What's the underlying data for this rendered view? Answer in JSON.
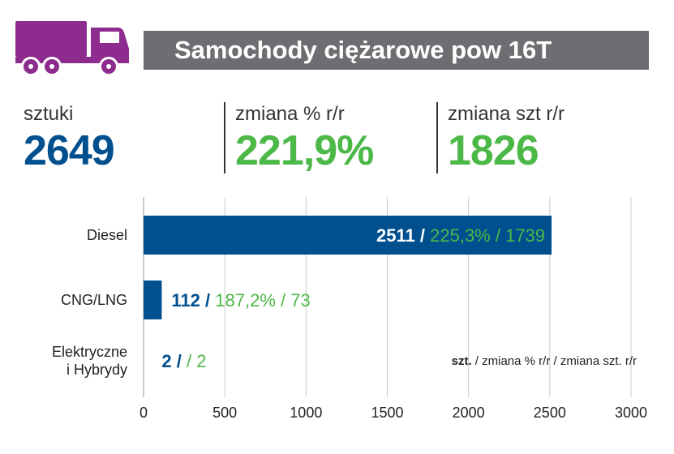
{
  "header": {
    "title": "Samochody ciężarowe pow 16T",
    "icon": "truck-icon",
    "icon_color": "#8e2b8e",
    "bar_color": "#6d6e71"
  },
  "stats": [
    {
      "label": "sztuki",
      "value": "2649",
      "color": "#004f8f"
    },
    {
      "label": "zmiana % r/r",
      "value": "221,9%",
      "color": "#4cb848"
    },
    {
      "label": "zmiana szt r/r",
      "value": "1826",
      "color": "#4cb848"
    }
  ],
  "chart_data": {
    "type": "bar",
    "orientation": "horizontal",
    "categories": [
      [
        "Diesel"
      ],
      [
        "CNG/LNG"
      ],
      [
        "Elektryczne",
        "i Hybrydy"
      ]
    ],
    "values": [
      2511,
      112,
      2
    ],
    "bar_labels": [
      {
        "count": "2511",
        "sep": " / ",
        "change": "225,3% / 1739"
      },
      {
        "count": "112",
        "sep": " / ",
        "change": "187,2% / 73"
      },
      {
        "count": "2",
        "sep": " / ",
        "change": " / 2"
      }
    ],
    "xlim": [
      0,
      3000
    ],
    "xticks": [
      0,
      500,
      1000,
      1500,
      2000,
      2500,
      3000
    ],
    "grid": true,
    "legend_note": {
      "bold": "szt.",
      "rest": " / zmiana % r/r / zmiana szt. r/r"
    },
    "colors": {
      "bar": "#004f8f",
      "change": "#4cb848",
      "grid": "#cccccc",
      "count_outside": "#004f8f",
      "count_inside": "#ffffff"
    }
  }
}
